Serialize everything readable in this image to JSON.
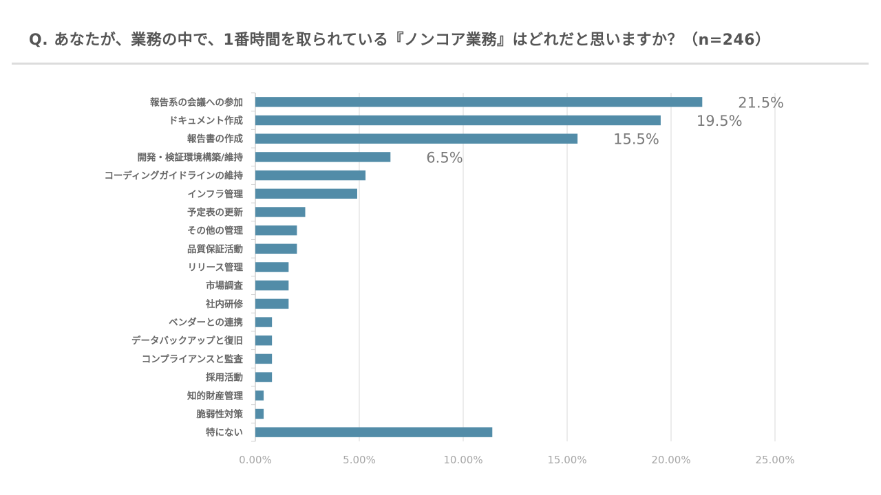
{
  "header": {
    "title": "Q. あなたが、業務の中で、1番時間を取られている『ノンコア業務』はどれだと思いますか？（n=246）"
  },
  "colors": {
    "bar": "#528ca8",
    "grid": "#d9d9d9",
    "axis": "#d0d0d0"
  },
  "chart_data": {
    "type": "bar",
    "orientation": "horizontal",
    "title": "Q. あなたが、業務の中で、1番時間を取られている『ノンコア業務』はどれだと思いますか？（n=246）",
    "xlabel": "",
    "ylabel": "",
    "xlim": [
      0,
      25
    ],
    "grid": true,
    "legend": "none",
    "x_ticks": [
      "0.00%",
      "5.00%",
      "10.00%",
      "15.00%",
      "20.00%",
      "25.00%"
    ],
    "x_tick_values": [
      0,
      5,
      10,
      15,
      20,
      25
    ],
    "categories": [
      "報告系の会議への参加",
      "ドキュメント作成",
      "報告書の作成",
      "開発・検証環境構築/維持",
      "コーディングガイドラインの維持",
      "インフラ管理",
      "予定表の更新",
      "その他の管理",
      "品質保証活動",
      "リリース管理",
      "市場調査",
      "社内研修",
      "ベンダーとの連携",
      "データバックアップと復旧",
      "コンプライアンスと監査",
      "採用活動",
      "知的財産管理",
      "脆弱性対策",
      "特にない"
    ],
    "values": [
      21.5,
      19.5,
      15.5,
      6.5,
      5.3,
      4.9,
      2.4,
      2.0,
      2.0,
      1.6,
      1.6,
      1.6,
      0.8,
      0.8,
      0.8,
      0.8,
      0.4,
      0.4,
      11.4
    ],
    "data_labels": [
      "21.5%",
      "19.5%",
      "15.5%",
      "6.5%",
      "",
      "",
      "",
      "",
      "",
      "",
      "",
      "",
      "",
      "",
      "",
      "",
      "",
      "",
      ""
    ]
  }
}
